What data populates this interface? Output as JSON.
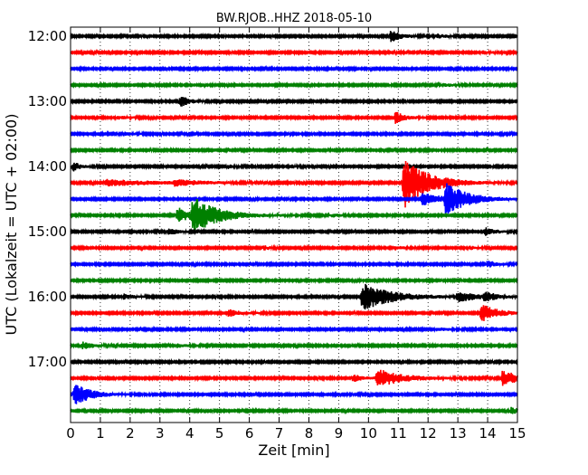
{
  "chart_data": {
    "type": "line",
    "title": "BW.RJOB..HHZ 2018-05-10",
    "xlabel": "Zeit  [min]",
    "ylabel": "UTC (Lokalzeit = UTC + 02:00)",
    "xlim": [
      0,
      15
    ],
    "x_ticks": [
      0,
      1,
      2,
      3,
      4,
      5,
      6,
      7,
      8,
      9,
      10,
      11,
      12,
      13,
      14,
      15
    ],
    "x_tick_labels": [
      "0",
      "1",
      "2",
      "3",
      "4",
      "5",
      "6",
      "7",
      "8",
      "9",
      "10",
      "11",
      "12",
      "13",
      "14",
      "15"
    ],
    "y_tick_labels": [
      "12:00",
      "13:00",
      "14:00",
      "15:00",
      "16:00",
      "17:00"
    ],
    "y_tick_rows": [
      0,
      4,
      8,
      12,
      16,
      20
    ],
    "grid": "vertical dotted at each minute",
    "trace_colors": [
      "#000000",
      "#ff0000",
      "#0000ff",
      "#008000"
    ],
    "traces": [
      {
        "start": "12:00",
        "events": [
          {
            "t": 10.75,
            "amp": 0.45,
            "dur": 0.35
          },
          {
            "t": 12.3,
            "amp": 0.15,
            "dur": 0.3
          }
        ]
      },
      {
        "start": "12:15",
        "events": [
          {
            "t": 13.8,
            "amp": 0.12,
            "dur": 0.3
          }
        ]
      },
      {
        "start": "12:30",
        "events": []
      },
      {
        "start": "12:45",
        "events": [
          {
            "t": 12.5,
            "amp": 0.12,
            "dur": 0.3
          }
        ]
      },
      {
        "start": "13:00",
        "events": [
          {
            "t": 3.7,
            "amp": 0.5,
            "dur": 0.25
          }
        ]
      },
      {
        "start": "13:15",
        "events": [
          {
            "t": 10.9,
            "amp": 0.5,
            "dur": 0.3
          },
          {
            "t": 1.6,
            "amp": 0.12,
            "dur": 0.3
          }
        ]
      },
      {
        "start": "13:30",
        "events": [
          {
            "t": 1.8,
            "amp": 0.12,
            "dur": 0.3
          }
        ]
      },
      {
        "start": "13:45",
        "events": []
      },
      {
        "start": "14:00",
        "events": [
          {
            "t": 0.1,
            "amp": 0.35,
            "dur": 0.25
          },
          {
            "t": 5.3,
            "amp": 0.15,
            "dur": 0.2
          },
          {
            "t": 7.4,
            "amp": 0.15,
            "dur": 0.2
          }
        ]
      },
      {
        "start": "14:15",
        "events": [
          {
            "t": 1.2,
            "amp": 0.25,
            "dur": 1.5
          },
          {
            "t": 3.5,
            "amp": 0.2,
            "dur": 0.8
          },
          {
            "t": 11.2,
            "amp": 2.0,
            "dur": 0.8
          }
        ]
      },
      {
        "start": "14:30",
        "events": [
          {
            "t": 12.6,
            "amp": 1.2,
            "dur": 0.7
          },
          {
            "t": 11.8,
            "amp": 0.5,
            "dur": 0.6
          }
        ]
      },
      {
        "start": "14:45",
        "events": [
          {
            "t": 4.1,
            "amp": 1.4,
            "dur": 0.8
          },
          {
            "t": 3.6,
            "amp": 0.6,
            "dur": 0.4
          },
          {
            "t": 8.8,
            "amp": 0.12,
            "dur": 0.2
          }
        ]
      },
      {
        "start": "15:00",
        "events": [
          {
            "t": 3.3,
            "amp": 0.25,
            "dur": 0.3
          },
          {
            "t": 13.9,
            "amp": 0.3,
            "dur": 0.3
          }
        ]
      },
      {
        "start": "15:15",
        "events": [
          {
            "t": 6.5,
            "amp": 0.15,
            "dur": 0.2
          },
          {
            "t": 10.9,
            "amp": 0.15,
            "dur": 0.3
          },
          {
            "t": 13.4,
            "amp": 0.15,
            "dur": 0.2
          }
        ]
      },
      {
        "start": "15:30",
        "events": [
          {
            "t": 14.0,
            "amp": 0.25,
            "dur": 0.3
          }
        ]
      },
      {
        "start": "15:45",
        "events": []
      },
      {
        "start": "16:00",
        "events": [
          {
            "t": 9.8,
            "amp": 1.1,
            "dur": 0.9
          },
          {
            "t": 13.0,
            "amp": 0.4,
            "dur": 0.6
          },
          {
            "t": 13.9,
            "amp": 0.35,
            "dur": 0.3
          },
          {
            "t": 1.8,
            "amp": 0.2,
            "dur": 0.3
          }
        ]
      },
      {
        "start": "16:15",
        "events": [
          {
            "t": 13.8,
            "amp": 0.7,
            "dur": 0.5
          },
          {
            "t": 5.3,
            "amp": 0.3,
            "dur": 0.3
          }
        ]
      },
      {
        "start": "16:30",
        "events": [
          {
            "t": 12.3,
            "amp": 0.15,
            "dur": 0.3
          }
        ]
      },
      {
        "start": "16:45",
        "events": [
          {
            "t": 0.4,
            "amp": 0.25,
            "dur": 0.4
          },
          {
            "t": 3.6,
            "amp": 0.15,
            "dur": 0.3
          }
        ]
      },
      {
        "start": "17:00",
        "events": []
      },
      {
        "start": "17:15",
        "events": [
          {
            "t": 10.3,
            "amp": 0.7,
            "dur": 0.8
          },
          {
            "t": 14.5,
            "amp": 0.6,
            "dur": 0.6
          },
          {
            "t": 9.5,
            "amp": 0.3,
            "dur": 0.3
          }
        ]
      },
      {
        "start": "17:30",
        "events": [
          {
            "t": 0.15,
            "amp": 0.9,
            "dur": 0.5
          }
        ]
      },
      {
        "start": "17:45",
        "events": [
          {
            "t": 14.8,
            "amp": 0.25,
            "dur": 0.3
          }
        ]
      }
    ]
  }
}
